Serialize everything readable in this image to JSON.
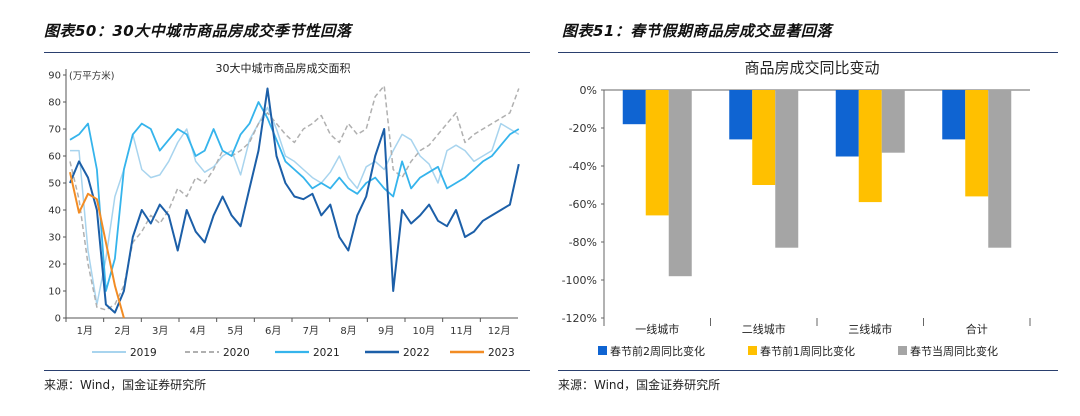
{
  "left": {
    "figure_title": "图表50：30大中城市商品房成交季节性回落",
    "source": "来源：Wind，国金证券研究所",
    "chart_data": {
      "type": "line",
      "title": "30大中城市商品房成交面积",
      "unit_label": "(万平方米)",
      "ylim": [
        0,
        90
      ],
      "yticks": [
        "0",
        "10",
        "20",
        "30",
        "40",
        "50",
        "60",
        "70",
        "80",
        "90"
      ],
      "xcategories": [
        "1月",
        "2月",
        "3月",
        "4月",
        "5月",
        "6月",
        "7月",
        "8月",
        "9月",
        "10月",
        "11月",
        "12月"
      ],
      "series": [
        {
          "name": "2019",
          "color": "#a8d4ee",
          "dash": false,
          "width": 1.5,
          "values": [
            62,
            62,
            25,
            5,
            22,
            45,
            55,
            68,
            55,
            52,
            53,
            58,
            65,
            70,
            58,
            54,
            56,
            60,
            62,
            53,
            66,
            72,
            78,
            70,
            60,
            58,
            55,
            52,
            50,
            54,
            60,
            52,
            48,
            56,
            58,
            55,
            62,
            68,
            66,
            60,
            57,
            50,
            62,
            64,
            62,
            58,
            60,
            62,
            72,
            70,
            68
          ]
        },
        {
          "name": "2020",
          "color": "#b0b0b0",
          "dash": true,
          "width": 1.5,
          "values": [
            58,
            44,
            20,
            4,
            3,
            5,
            12,
            28,
            32,
            38,
            35,
            40,
            48,
            45,
            52,
            50,
            55,
            62,
            60,
            62,
            65,
            72,
            76,
            72,
            68,
            65,
            70,
            72,
            75,
            68,
            65,
            72,
            68,
            70,
            82,
            86,
            55,
            52,
            58,
            62,
            64,
            68,
            72,
            76,
            65,
            68,
            70,
            72,
            74,
            76,
            85
          ]
        },
        {
          "name": "2021",
          "color": "#35b4ec",
          "dash": false,
          "width": 1.8,
          "values": [
            66,
            68,
            72,
            55,
            10,
            22,
            55,
            68,
            72,
            70,
            62,
            66,
            70,
            68,
            60,
            62,
            70,
            62,
            60,
            68,
            72,
            80,
            74,
            66,
            58,
            55,
            52,
            48,
            50,
            48,
            52,
            48,
            46,
            50,
            52,
            48,
            45,
            58,
            48,
            52,
            54,
            56,
            48,
            50,
            52,
            55,
            58,
            60,
            64,
            68,
            70
          ]
        },
        {
          "name": "2022",
          "color": "#1c5fa8",
          "dash": false,
          "width": 2,
          "values": [
            50,
            58,
            52,
            40,
            5,
            2,
            10,
            30,
            40,
            35,
            42,
            38,
            25,
            40,
            32,
            28,
            38,
            45,
            38,
            34,
            48,
            62,
            85,
            60,
            50,
            45,
            44,
            46,
            38,
            42,
            30,
            25,
            38,
            45,
            60,
            70,
            10,
            40,
            35,
            38,
            42,
            36,
            34,
            40,
            30,
            32,
            36,
            38,
            40,
            42,
            57
          ]
        },
        {
          "name": "2023",
          "color": "#f28c24",
          "dash": false,
          "width": 2,
          "values": [
            54,
            39,
            46,
            44,
            28,
            12,
            0
          ]
        }
      ]
    }
  },
  "right": {
    "figure_title": "图表51：春节假期商品房成交显著回落",
    "source": "来源：Wind，国金证券研究所",
    "chart_data": {
      "type": "bar",
      "title": "商品房成交同比变动",
      "ylim": [
        -120,
        0
      ],
      "yticks": [
        "0%",
        "-20%",
        "-40%",
        "-60%",
        "-80%",
        "-100%",
        "-120%"
      ],
      "categories": [
        "一线城市",
        "二线城市",
        "三线城市",
        "合计"
      ],
      "series": [
        {
          "name": "春节前2周同比变化",
          "color": "#0f64d2",
          "values": [
            -18,
            -26,
            -35,
            -26
          ]
        },
        {
          "name": "春节前1周同比变化",
          "color": "#ffc000",
          "values": [
            -66,
            -50,
            -59,
            -56
          ]
        },
        {
          "name": "春节当周同比变化",
          "color": "#a5a5a5",
          "values": [
            -98,
            -83,
            -33,
            -83
          ]
        }
      ]
    }
  }
}
